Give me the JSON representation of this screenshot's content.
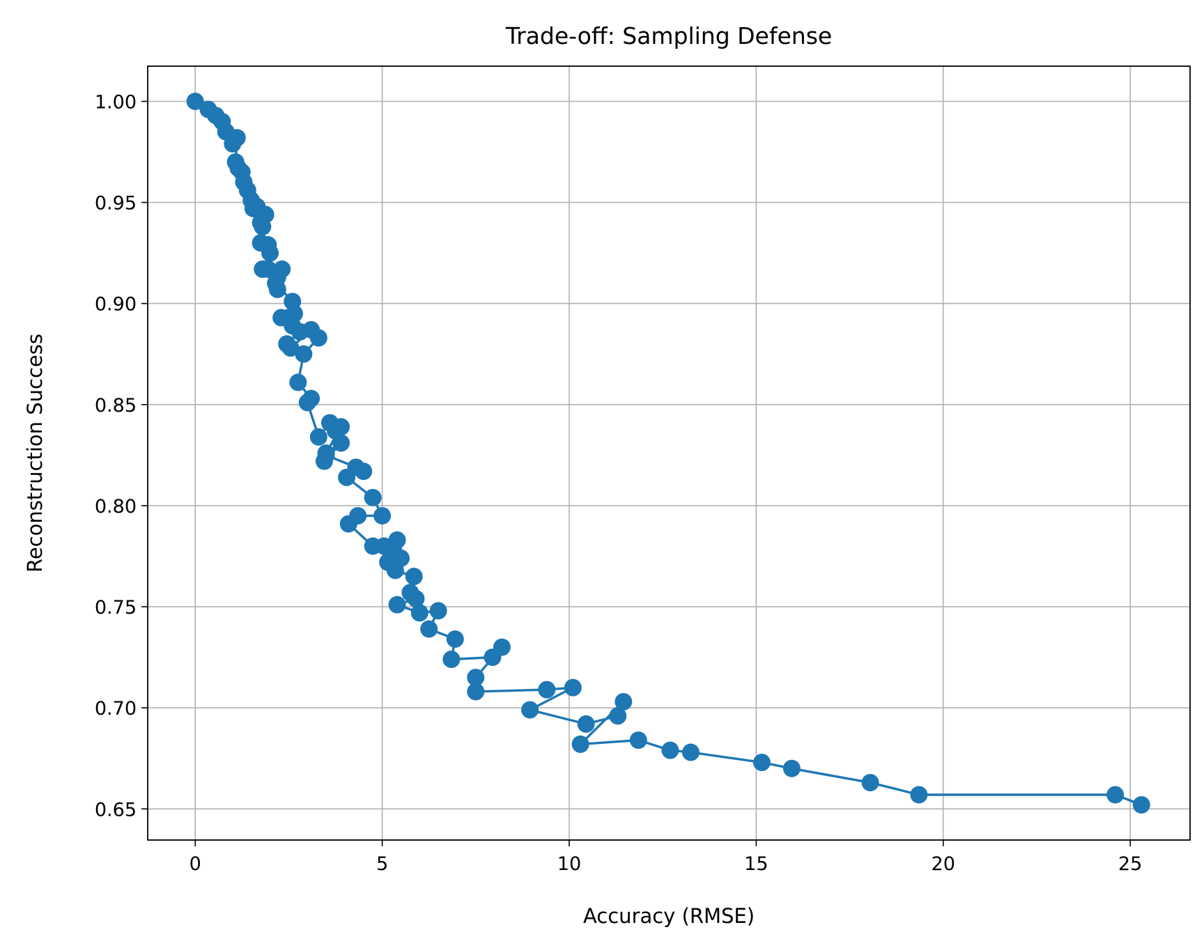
{
  "chart_data": {
    "type": "line",
    "title": "Trade-off: Sampling Defense",
    "xlabel": "Accuracy (RMSE)",
    "ylabel": "Reconstruction Success",
    "xlim": [
      -1.27,
      26.6
    ],
    "ylim": [
      0.6346,
      1.0174
    ],
    "x_ticks": [
      0,
      5,
      10,
      15,
      20,
      25
    ],
    "y_ticks": [
      0.65,
      0.7,
      0.75,
      0.8,
      0.85,
      0.9,
      0.95,
      1.0
    ],
    "x_tick_labels": [
      "0",
      "5",
      "10",
      "15",
      "20",
      "25"
    ],
    "y_tick_labels": [
      "0.65",
      "0.70",
      "0.75",
      "0.80",
      "0.85",
      "0.90",
      "0.95",
      "1.00"
    ],
    "grid": true,
    "markers": true,
    "color": "#1f77b4",
    "series": [
      {
        "x": [
          0.0,
          0.35,
          0.55,
          0.72,
          0.82,
          1.0,
          1.12,
          1.08,
          1.15,
          1.25,
          1.3,
          1.4,
          1.5,
          1.55,
          1.65,
          1.75,
          1.88,
          1.8,
          1.75,
          1.95,
          2.0,
          1.8,
          1.95,
          2.2,
          2.32,
          2.2,
          2.15,
          2.6,
          2.65,
          2.5,
          2.3,
          2.6,
          2.8,
          2.45,
          2.55,
          3.1,
          3.3,
          2.9,
          2.75,
          3.1,
          3.0,
          3.3,
          3.6,
          3.75,
          3.9,
          3.5,
          3.9,
          3.45,
          3.5,
          4.3,
          4.5,
          4.05,
          4.75,
          5.0,
          4.35,
          4.1,
          4.75,
          5.05,
          5.4,
          5.3,
          5.5,
          5.15,
          5.35,
          5.85,
          5.75,
          5.9,
          5.4,
          6.0,
          6.5,
          6.25,
          6.95,
          6.85,
          7.95,
          8.2,
          7.5,
          7.5,
          9.4,
          10.1,
          8.95,
          10.45,
          11.3,
          11.45,
          10.3,
          11.85,
          12.7,
          13.25,
          15.15,
          15.95,
          18.05,
          19.35,
          24.6,
          25.3
        ],
        "y": [
          1.0,
          0.996,
          0.993,
          0.99,
          0.985,
          0.979,
          0.982,
          0.97,
          0.967,
          0.965,
          0.96,
          0.956,
          0.951,
          0.947,
          0.948,
          0.94,
          0.944,
          0.938,
          0.93,
          0.929,
          0.925,
          0.917,
          0.917,
          0.907,
          0.917,
          0.913,
          0.91,
          0.901,
          0.895,
          0.893,
          0.893,
          0.889,
          0.886,
          0.88,
          0.878,
          0.887,
          0.883,
          0.875,
          0.861,
          0.853,
          0.851,
          0.834,
          0.841,
          0.837,
          0.839,
          0.826,
          0.831,
          0.822,
          0.825,
          0.819,
          0.817,
          0.814,
          0.804,
          0.795,
          0.795,
          0.791,
          0.78,
          0.78,
          0.783,
          0.778,
          0.774,
          0.772,
          0.768,
          0.765,
          0.757,
          0.754,
          0.751,
          0.747,
          0.748,
          0.739,
          0.734,
          0.724,
          0.725,
          0.73,
          0.715,
          0.708,
          0.709,
          0.71,
          0.699,
          0.692,
          0.696,
          0.703,
          0.682,
          0.684,
          0.679,
          0.678,
          0.673,
          0.67,
          0.663,
          0.657,
          0.657,
          0.652
        ]
      }
    ]
  }
}
